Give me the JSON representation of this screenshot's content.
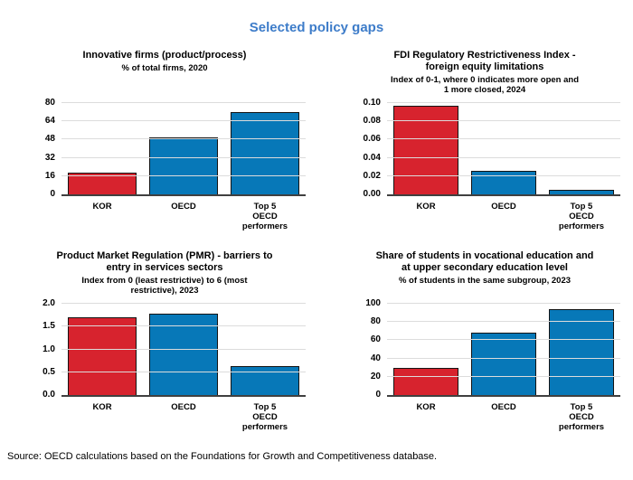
{
  "page": {
    "title": "Selected policy gaps",
    "source": "Source: OECD calculations based on the Foundations for Growth and Competitiveness database.",
    "title_color": "#3d7cc9",
    "bar_red": "#d7232e",
    "bar_blue": "#0778b8",
    "gridline_color": "#dcdcdc",
    "axis_color": "#404040"
  },
  "chart_data": [
    {
      "type": "bar",
      "title": "Innovative firms (product/process)",
      "subtitle": "% of total firms, 2020",
      "categories": [
        "KOR",
        "OECD",
        "Top 5\nOECD\nperformers"
      ],
      "values": [
        19,
        50,
        72
      ],
      "colors": [
        "#d7232e",
        "#0778b8",
        "#0778b8"
      ],
      "ylim": [
        0,
        80
      ],
      "yticks": [
        "0",
        "16",
        "32",
        "48",
        "64",
        "80"
      ],
      "grid": true,
      "legend": false
    },
    {
      "type": "bar",
      "title": "FDI Regulatory Restrictiveness Index -\nforeign equity limitations",
      "subtitle": "Index of 0-1, where 0 indicates more open and\n1 more closed, 2024",
      "categories": [
        "KOR",
        "OECD",
        "Top 5\nOECD\nperformers"
      ],
      "values": [
        0.097,
        0.026,
        0.005
      ],
      "colors": [
        "#d7232e",
        "#0778b8",
        "#0778b8"
      ],
      "ylim": [
        0,
        0.1
      ],
      "yticks": [
        "0.00",
        "0.02",
        "0.04",
        "0.06",
        "0.08",
        "0.10"
      ],
      "grid": true,
      "legend": false
    },
    {
      "type": "bar",
      "title": "Product Market Regulation (PMR) - barriers to\nentry in services sectors",
      "subtitle": "Index from 0 (least restrictive) to 6 (most\nrestrictive), 2023",
      "categories": [
        "KOR",
        "OECD",
        "Top 5\nOECD\nperformers"
      ],
      "values": [
        1.7,
        1.78,
        0.64
      ],
      "colors": [
        "#d7232e",
        "#0778b8",
        "#0778b8"
      ],
      "ylim": [
        0,
        2.0
      ],
      "yticks": [
        "0.0",
        "0.5",
        "1.0",
        "1.5",
        "2.0"
      ],
      "grid": true,
      "legend": false
    },
    {
      "type": "bar",
      "title": "Share of students in vocational education and\nat upper secondary education level",
      "subtitle": "% of students in the same subgroup, 2023",
      "categories": [
        "KOR",
        "OECD",
        "Top 5\nOECD\nperformers"
      ],
      "values": [
        30,
        68,
        94
      ],
      "colors": [
        "#d7232e",
        "#0778b8",
        "#0778b8"
      ],
      "ylim": [
        0,
        100
      ],
      "yticks": [
        "0",
        "20",
        "40",
        "60",
        "80",
        "100"
      ],
      "grid": true,
      "legend": false
    }
  ]
}
